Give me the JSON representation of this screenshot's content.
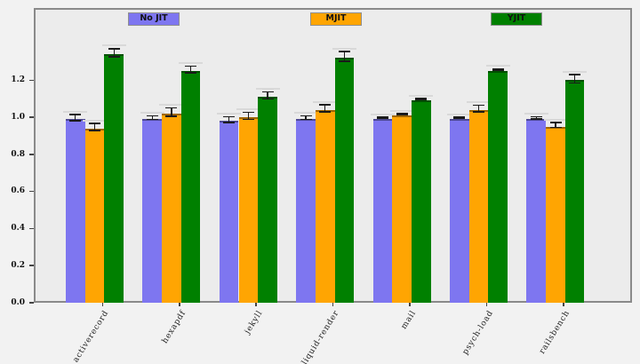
{
  "figure": {
    "background": "#f2f2f2",
    "plot_background": "#ececec",
    "frame_color": "#8a8a8a"
  },
  "legend": {
    "items": [
      {
        "label": "No JIT",
        "color": "#7e76f0"
      },
      {
        "label": "MJIT",
        "color": "#ffa502"
      },
      {
        "label": "YJIT",
        "color": "#008000"
      }
    ],
    "position": "top-inside-spread"
  },
  "chart_data": {
    "type": "bar",
    "title": "",
    "xlabel": "",
    "ylabel": "",
    "categories": [
      "activerecord",
      "hexapdf",
      "jekyll",
      "liquid-render",
      "mail",
      "psych-load",
      "railsbench"
    ],
    "series": [
      {
        "name": "No JIT",
        "color": "#7e76f0",
        "values": [
          1.0,
          1.0,
          0.99,
          1.0,
          1.0,
          1.0,
          1.0
        ],
        "errors": [
          0.018,
          0.012,
          0.018,
          0.012,
          0.004,
          0.004,
          0.008
        ]
      },
      {
        "name": "MJIT",
        "color": "#ffa502",
        "values": [
          0.95,
          1.03,
          1.01,
          1.05,
          1.02,
          1.05,
          0.96
        ],
        "errors": [
          0.022,
          0.025,
          0.022,
          0.022,
          0.005,
          0.02,
          0.015
        ]
      },
      {
        "name": "YJIT",
        "color": "#008000",
        "values": [
          1.35,
          1.26,
          1.12,
          1.33,
          1.1,
          1.26,
          1.21
        ],
        "errors": [
          0.025,
          0.02,
          0.022,
          0.028,
          0.006,
          0.006,
          0.025
        ]
      }
    ],
    "error_bars": true,
    "error_bar_style": {
      "cap_color": "#1a1a1a",
      "outer_cap_color": "#d9d9d9"
    },
    "ylim": [
      0,
      1.59
    ],
    "yticks": [
      "0.0",
      "0.2",
      "0.4",
      "0.6",
      "0.8",
      "1.0",
      "1.2"
    ],
    "grid": false,
    "legend_position": "top"
  }
}
